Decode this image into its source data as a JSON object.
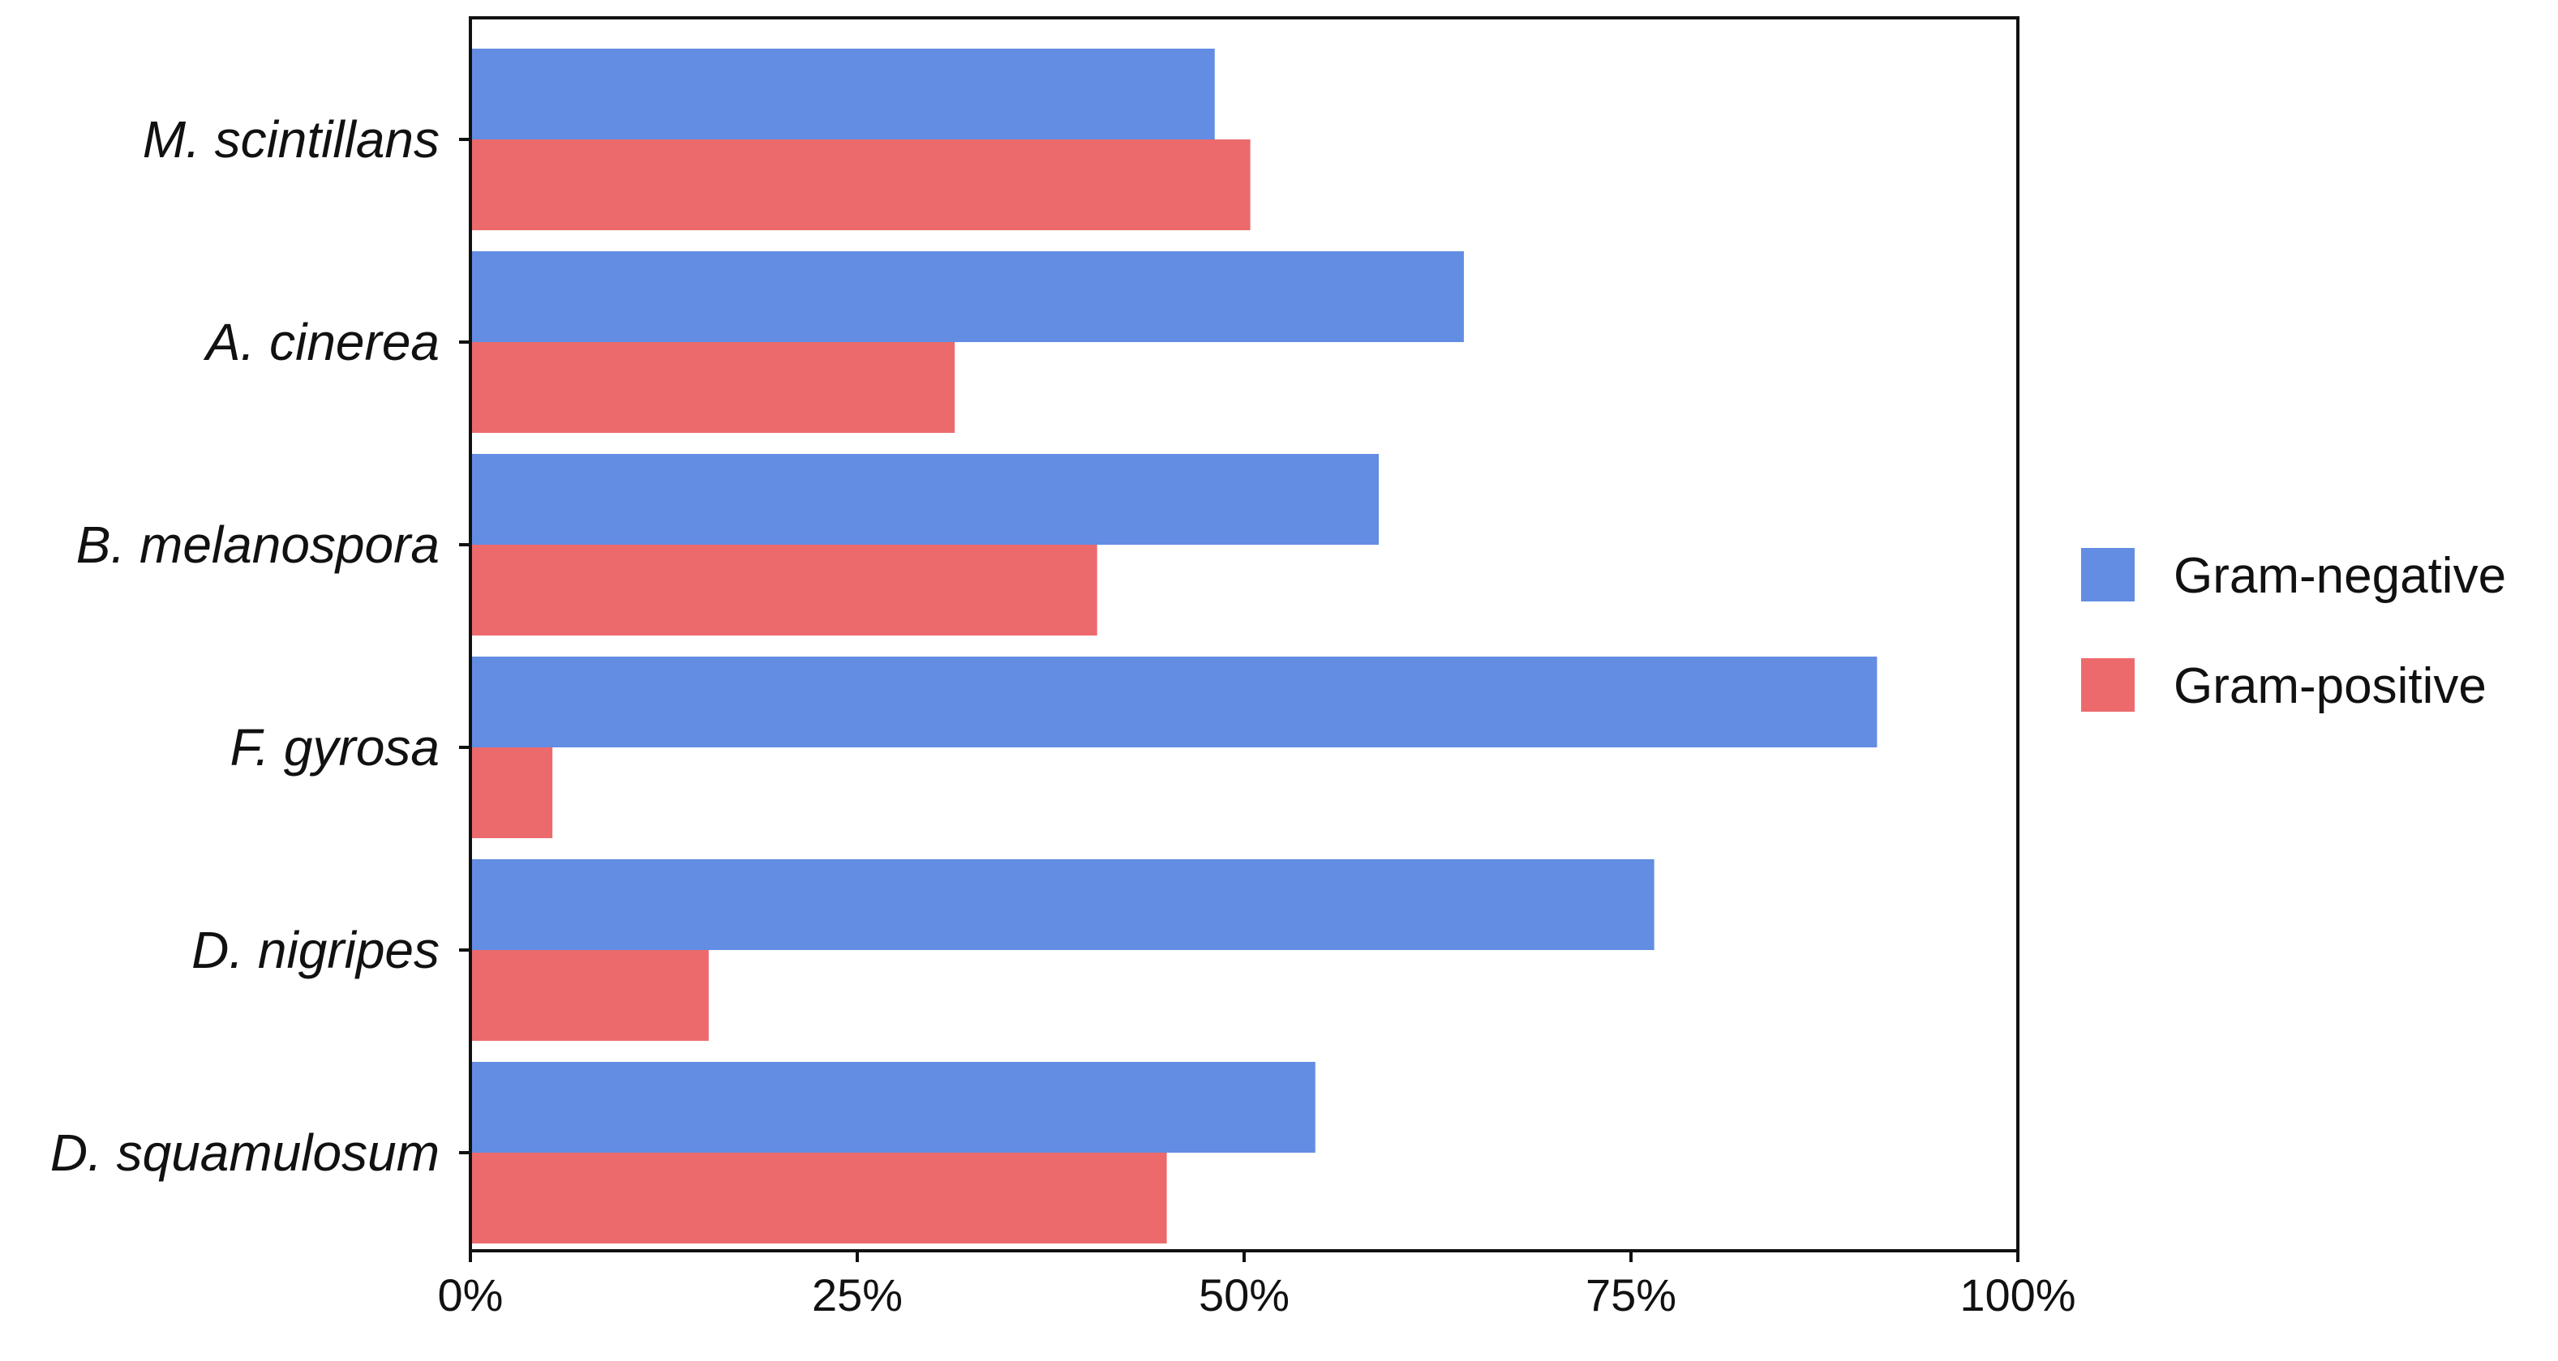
{
  "chart_data": {
    "type": "bar",
    "orientation": "horizontal",
    "categories": [
      "M. scintillans",
      "A. cinerea",
      "B. melanospora",
      "F. gyrosa",
      "D. nigripes",
      "D. squamulosum"
    ],
    "series": [
      {
        "name": "Gram-negative",
        "color": "#628DE2",
        "values": [
          48.1,
          64.2,
          58.7,
          90.9,
          76.5,
          54.6
        ]
      },
      {
        "name": "Gram-positive",
        "color": "#EC6A6C",
        "values": [
          50.4,
          31.3,
          40.5,
          5.3,
          15.4,
          45.0
        ]
      }
    ],
    "title": "",
    "xlabel": "",
    "ylabel": "",
    "xlim": [
      0,
      100
    ],
    "xticks": [
      "0%",
      "25%",
      "50%",
      "75%",
      "100%"
    ],
    "grid": false,
    "legend": "right"
  }
}
